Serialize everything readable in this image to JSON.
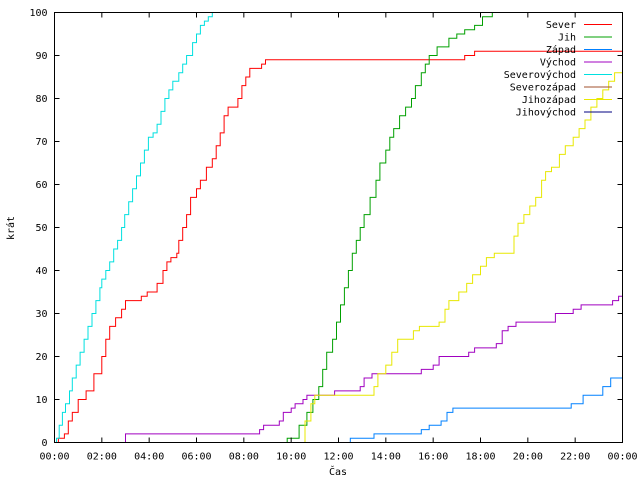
{
  "chart_data": {
    "type": "line",
    "title": "",
    "xlabel": "Čas",
    "ylabel": "krát",
    "xlim": [
      "00:00",
      "24:00"
    ],
    "ylim": [
      0,
      100
    ],
    "x_ticks": [
      "00:00",
      "02:00",
      "04:00",
      "06:00",
      "08:00",
      "10:00",
      "12:00",
      "14:00",
      "16:00",
      "18:00",
      "20:00",
      "22:00",
      "00:00"
    ],
    "y_ticks": [
      0,
      10,
      20,
      30,
      40,
      50,
      60,
      70,
      80,
      90,
      100
    ],
    "grid": false,
    "legend_position": "top-right",
    "step": true,
    "series": [
      {
        "name": "Sever",
        "color": "#ff0000",
        "points": [
          [
            "00:10",
            1
          ],
          [
            "00:25",
            2
          ],
          [
            "00:35",
            5
          ],
          [
            "00:45",
            7
          ],
          [
            "01:00",
            10
          ],
          [
            "01:20",
            12
          ],
          [
            "01:40",
            16
          ],
          [
            "02:00",
            20
          ],
          [
            "02:10",
            24
          ],
          [
            "02:20",
            27
          ],
          [
            "02:35",
            29
          ],
          [
            "02:50",
            31
          ],
          [
            "03:00",
            33
          ],
          [
            "03:40",
            34
          ],
          [
            "03:55",
            35
          ],
          [
            "04:20",
            37
          ],
          [
            "04:35",
            40
          ],
          [
            "04:45",
            42
          ],
          [
            "04:55",
            43
          ],
          [
            "05:10",
            44
          ],
          [
            "05:15",
            47
          ],
          [
            "05:25",
            50
          ],
          [
            "05:35",
            53
          ],
          [
            "05:45",
            57
          ],
          [
            "06:00",
            59
          ],
          [
            "06:10",
            61
          ],
          [
            "06:25",
            64
          ],
          [
            "06:40",
            66
          ],
          [
            "06:50",
            69
          ],
          [
            "07:00",
            72
          ],
          [
            "07:10",
            76
          ],
          [
            "07:20",
            78
          ],
          [
            "07:45",
            80
          ],
          [
            "07:55",
            83
          ],
          [
            "08:05",
            85
          ],
          [
            "08:15",
            87
          ],
          [
            "08:45",
            88
          ],
          [
            "08:55",
            89
          ],
          [
            "12:55",
            89
          ],
          [
            "17:20",
            90
          ],
          [
            "17:45",
            91
          ],
          [
            "24:00",
            91
          ]
        ]
      },
      {
        "name": "Jih",
        "color": "#00a000",
        "points": [
          [
            "09:50",
            1
          ],
          [
            "10:20",
            4
          ],
          [
            "10:40",
            7
          ],
          [
            "10:55",
            10
          ],
          [
            "11:10",
            13
          ],
          [
            "11:20",
            17
          ],
          [
            "11:30",
            21
          ],
          [
            "11:45",
            24
          ],
          [
            "11:55",
            28
          ],
          [
            "12:05",
            32
          ],
          [
            "12:15",
            36
          ],
          [
            "12:25",
            40
          ],
          [
            "12:35",
            44
          ],
          [
            "12:45",
            47
          ],
          [
            "12:55",
            50
          ],
          [
            "13:05",
            53
          ],
          [
            "13:20",
            57
          ],
          [
            "13:35",
            61
          ],
          [
            "13:45",
            65
          ],
          [
            "14:00",
            68
          ],
          [
            "14:10",
            71
          ],
          [
            "14:20",
            73
          ],
          [
            "14:35",
            76
          ],
          [
            "14:50",
            78
          ],
          [
            "15:05",
            80
          ],
          [
            "15:15",
            83
          ],
          [
            "15:30",
            86
          ],
          [
            "15:40",
            88
          ],
          [
            "15:50",
            90
          ],
          [
            "16:10",
            92
          ],
          [
            "16:40",
            94
          ],
          [
            "17:00",
            95
          ],
          [
            "17:20",
            96
          ],
          [
            "17:45",
            97
          ],
          [
            "18:05",
            99
          ],
          [
            "18:30",
            100
          ],
          [
            "24:00",
            100
          ]
        ]
      },
      {
        "name": "Západ",
        "color": "#0080ff",
        "points": [
          [
            "12:30",
            1
          ],
          [
            "13:30",
            2
          ],
          [
            "15:30",
            3
          ],
          [
            "15:50",
            4
          ],
          [
            "16:20",
            5
          ],
          [
            "16:35",
            7
          ],
          [
            "16:50",
            8
          ],
          [
            "20:30",
            8
          ],
          [
            "21:50",
            9
          ],
          [
            "22:20",
            11
          ],
          [
            "23:10",
            13
          ],
          [
            "23:30",
            15
          ],
          [
            "24:00",
            15
          ]
        ]
      },
      {
        "name": "Východ",
        "color": "#a000c0",
        "points": [
          [
            "03:00",
            2
          ],
          [
            "08:40",
            3
          ],
          [
            "08:50",
            4
          ],
          [
            "09:30",
            5
          ],
          [
            "09:40",
            7
          ],
          [
            "10:00",
            8
          ],
          [
            "10:10",
            9
          ],
          [
            "10:30",
            10
          ],
          [
            "10:40",
            11
          ],
          [
            "11:50",
            12
          ],
          [
            "12:55",
            13
          ],
          [
            "13:05",
            15
          ],
          [
            "13:25",
            16
          ],
          [
            "15:30",
            17
          ],
          [
            "16:00",
            18
          ],
          [
            "16:15",
            20
          ],
          [
            "17:30",
            21
          ],
          [
            "17:45",
            22
          ],
          [
            "18:40",
            23
          ],
          [
            "18:55",
            26
          ],
          [
            "19:10",
            27
          ],
          [
            "19:30",
            28
          ],
          [
            "21:10",
            30
          ],
          [
            "21:55",
            31
          ],
          [
            "22:15",
            32
          ],
          [
            "23:35",
            33
          ],
          [
            "23:50",
            34
          ],
          [
            "24:00",
            34
          ]
        ]
      },
      {
        "name": "Severovýchod",
        "color": "#00e0e0",
        "points": [
          [
            "00:05",
            1
          ],
          [
            "00:12",
            4
          ],
          [
            "00:20",
            7
          ],
          [
            "00:28",
            9
          ],
          [
            "00:38",
            12
          ],
          [
            "00:45",
            15
          ],
          [
            "00:55",
            18
          ],
          [
            "01:05",
            21
          ],
          [
            "01:15",
            24
          ],
          [
            "01:25",
            27
          ],
          [
            "01:35",
            30
          ],
          [
            "01:45",
            33
          ],
          [
            "01:55",
            36
          ],
          [
            "02:00",
            38
          ],
          [
            "02:10",
            40
          ],
          [
            "02:20",
            42
          ],
          [
            "02:30",
            45
          ],
          [
            "02:40",
            47
          ],
          [
            "02:50",
            50
          ],
          [
            "02:58",
            53
          ],
          [
            "03:08",
            56
          ],
          [
            "03:18",
            59
          ],
          [
            "03:28",
            62
          ],
          [
            "03:38",
            65
          ],
          [
            "03:48",
            68
          ],
          [
            "03:58",
            71
          ],
          [
            "04:10",
            72
          ],
          [
            "04:20",
            74
          ],
          [
            "04:30",
            77
          ],
          [
            "04:40",
            80
          ],
          [
            "04:50",
            82
          ],
          [
            "05:00",
            84
          ],
          [
            "05:15",
            86
          ],
          [
            "05:25",
            88
          ],
          [
            "05:35",
            90
          ],
          [
            "05:50",
            93
          ],
          [
            "06:00",
            95
          ],
          [
            "06:10",
            97
          ],
          [
            "06:20",
            98
          ],
          [
            "06:30",
            99
          ],
          [
            "06:40",
            100
          ],
          [
            "07:30",
            100
          ]
        ]
      },
      {
        "name": "Severozápad",
        "color": "#a0522d",
        "points": []
      },
      {
        "name": "Jihozápad",
        "color": "#e8e800",
        "points": [
          [
            "10:35",
            5
          ],
          [
            "10:50",
            9
          ],
          [
            "11:00",
            11
          ],
          [
            "13:30",
            13
          ],
          [
            "13:40",
            16
          ],
          [
            "14:00",
            18
          ],
          [
            "14:15",
            21
          ],
          [
            "14:30",
            24
          ],
          [
            "15:10",
            26
          ],
          [
            "15:25",
            27
          ],
          [
            "16:15",
            28
          ],
          [
            "16:30",
            31
          ],
          [
            "16:40",
            33
          ],
          [
            "17:05",
            35
          ],
          [
            "17:25",
            37
          ],
          [
            "17:40",
            39
          ],
          [
            "18:00",
            41
          ],
          [
            "18:15",
            43
          ],
          [
            "18:35",
            44
          ],
          [
            "19:25",
            48
          ],
          [
            "19:35",
            51
          ],
          [
            "19:50",
            53
          ],
          [
            "20:05",
            55
          ],
          [
            "20:20",
            57
          ],
          [
            "20:35",
            61
          ],
          [
            "20:45",
            63
          ],
          [
            "21:00",
            64
          ],
          [
            "21:20",
            67
          ],
          [
            "21:35",
            69
          ],
          [
            "21:55",
            71
          ],
          [
            "22:10",
            73
          ],
          [
            "22:25",
            75
          ],
          [
            "22:40",
            78
          ],
          [
            "22:55",
            80
          ],
          [
            "23:10",
            82
          ],
          [
            "23:25",
            84
          ],
          [
            "23:40",
            86
          ],
          [
            "24:00",
            88
          ]
        ]
      },
      {
        "name": "Jihovýchod",
        "color": "#000080",
        "points": []
      }
    ]
  }
}
